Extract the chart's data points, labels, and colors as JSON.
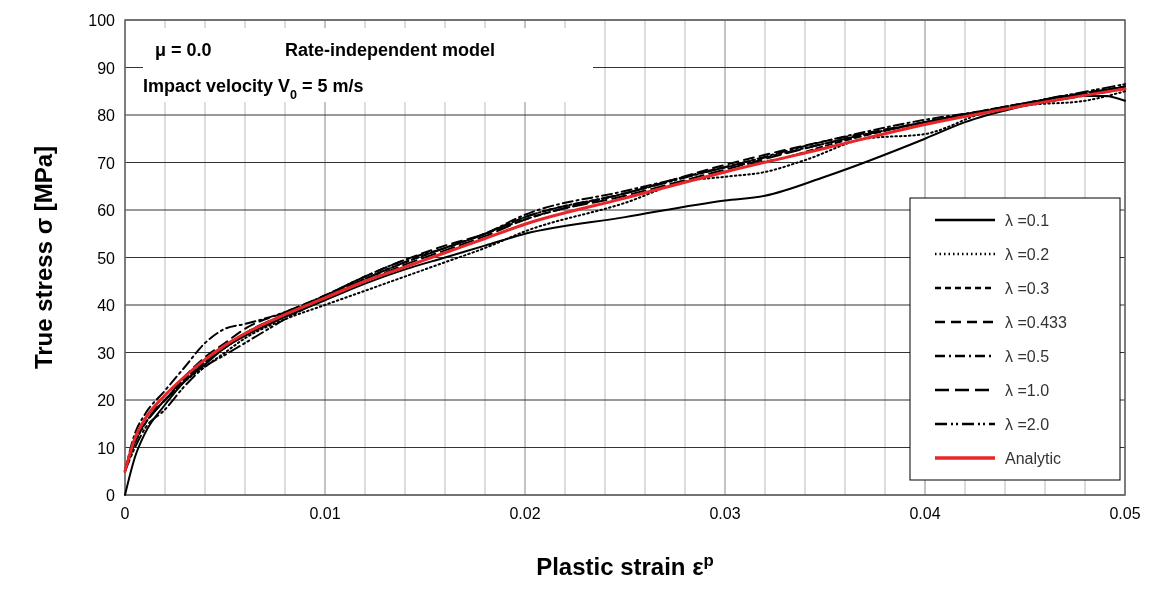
{
  "chart_data": {
    "type": "line",
    "xlabel": "Plastic strain ε$^{p}$",
    "ylabel": "True stress σ [MPa]",
    "annotations": [
      "μ = 0.0",
      "Rate-independent model",
      "Impact velocity V$_{0}$ = 5 m/s"
    ],
    "xlim": [
      0,
      0.05
    ],
    "ylim": [
      0,
      100
    ],
    "xticks": [
      0,
      {
        "value": 0.002,
        "label": null
      },
      {
        "value": 0.004,
        "label": null
      },
      {
        "value": 0.006,
        "label": null
      },
      {
        "value": 0.008,
        "label": null
      },
      0.01,
      {
        "value": 0.012,
        "label": null
      },
      {
        "value": 0.014,
        "label": null
      },
      {
        "value": 0.016,
        "label": null
      },
      {
        "value": 0.018,
        "label": null
      },
      0.02,
      {
        "value": 0.022,
        "label": null
      },
      {
        "value": 0.024,
        "label": null
      },
      {
        "value": 0.026,
        "label": null
      },
      {
        "value": 0.028,
        "label": null
      },
      0.03,
      {
        "value": 0.032,
        "label": null
      },
      {
        "value": 0.034,
        "label": null
      },
      {
        "value": 0.036,
        "label": null
      },
      {
        "value": 0.038,
        "label": null
      },
      0.04,
      {
        "value": 0.042,
        "label": null
      },
      {
        "value": 0.044,
        "label": null
      },
      {
        "value": 0.046,
        "label": null
      },
      {
        "value": 0.048,
        "label": null
      },
      0.05
    ],
    "yticks": [
      0,
      10,
      20,
      30,
      40,
      50,
      60,
      70,
      80,
      90,
      100
    ],
    "grid": true,
    "legend": "bottom right",
    "marker": "none",
    "series": [
      {
        "name": "λ =0.1",
        "color": "#000000",
        "line_style": "solid",
        "x": [
          0,
          0.0005,
          0.001,
          0.002,
          0.003,
          0.004,
          0.005,
          0.006,
          0.008,
          0.01,
          0.012,
          0.014,
          0.016,
          0.018,
          0.02,
          0.025,
          0.03,
          0.032,
          0.035,
          0.04,
          0.042,
          0.045,
          0.047,
          0.049,
          0.05
        ],
        "values": [
          0,
          8,
          13,
          19,
          24,
          27.5,
          31,
          33.5,
          37.5,
          41,
          44.5,
          47.5,
          50,
          52.5,
          55,
          58.5,
          62,
          63,
          67,
          75,
          78.5,
          82,
          84,
          84,
          83
        ]
      },
      {
        "name": "λ =0.2",
        "color": "#000000",
        "line_style": "dotted",
        "x": [
          0,
          0.0005,
          0.001,
          0.002,
          0.003,
          0.004,
          0.005,
          0.006,
          0.008,
          0.01,
          0.012,
          0.014,
          0.016,
          0.018,
          0.02,
          0.025,
          0.028,
          0.03,
          0.032,
          0.034,
          0.037,
          0.04,
          0.043,
          0.045,
          0.048,
          0.05
        ],
        "values": [
          5,
          11,
          15,
          20,
          24,
          27,
          30,
          33,
          37,
          40,
          43,
          46,
          49,
          52,
          55.5,
          61.5,
          66,
          67,
          68,
          70.5,
          75,
          76,
          80.5,
          82,
          83,
          85
        ]
      },
      {
        "name": "λ =0.3",
        "color": "#000000",
        "line_style": "dashed",
        "x": [
          0,
          0.0005,
          0.001,
          0.002,
          0.003,
          0.004,
          0.005,
          0.006,
          0.008,
          0.01,
          0.012,
          0.014,
          0.016,
          0.018,
          0.02,
          0.025,
          0.03,
          0.033,
          0.035,
          0.04,
          0.045,
          0.05
        ],
        "values": [
          5,
          11,
          15,
          20,
          24.5,
          28,
          31,
          34,
          38,
          42,
          45.5,
          49,
          52,
          55,
          58,
          63.5,
          69,
          71,
          73.5,
          78.5,
          82.5,
          86
        ]
      },
      {
        "name": "λ =0.433",
        "color": "#000000",
        "line_style": "dashed",
        "x": [
          0,
          0.0005,
          0.001,
          0.002,
          0.003,
          0.004,
          0.005,
          0.006,
          0.008,
          0.01,
          0.012,
          0.014,
          0.016,
          0.018,
          0.02,
          0.025,
          0.03,
          0.035,
          0.04,
          0.045,
          0.05
        ],
        "values": [
          5,
          12,
          16,
          20,
          25,
          29,
          32,
          35,
          38.5,
          42,
          46,
          49.5,
          52.5,
          55,
          58.5,
          63.5,
          69.5,
          74.5,
          78.5,
          82.5,
          86
        ]
      },
      {
        "name": "λ =0.5",
        "color": "#000000",
        "line_style": "dashed",
        "x": [
          0,
          0.0005,
          0.001,
          0.002,
          0.003,
          0.004,
          0.005,
          0.006,
          0.008,
          0.01,
          0.012,
          0.014,
          0.016,
          0.018,
          0.02,
          0.025,
          0.03,
          0.035,
          0.04,
          0.045,
          0.05
        ],
        "values": [
          5,
          13,
          17,
          22,
          27,
          32,
          35,
          36,
          38.5,
          42,
          46,
          49.5,
          52,
          55,
          59,
          64,
          69,
          74.5,
          79,
          82,
          86
        ]
      },
      {
        "name": "λ =1.0",
        "color": "#000000",
        "line_style": "dashed",
        "x": [
          0,
          0.0005,
          0.001,
          0.002,
          0.003,
          0.004,
          0.005,
          0.006,
          0.008,
          0.01,
          0.012,
          0.014,
          0.016,
          0.018,
          0.02,
          0.025,
          0.03,
          0.035,
          0.04,
          0.045,
          0.05
        ],
        "values": [
          5,
          12,
          15,
          20,
          24,
          28,
          31,
          34,
          38,
          41.5,
          45,
          48.5,
          51.5,
          54.5,
          58,
          63,
          68.5,
          74,
          78.5,
          82,
          85.5
        ]
      },
      {
        "name": "λ =2.0",
        "color": "#000000",
        "line_style": "dashed",
        "x": [
          0,
          0.0005,
          0.001,
          0.002,
          0.003,
          0.004,
          0.005,
          0.006,
          0.008,
          0.01,
          0.012,
          0.014,
          0.016,
          0.018,
          0.02,
          0.025,
          0.03,
          0.035,
          0.04,
          0.045,
          0.05
        ],
        "values": [
          5,
          10,
          14,
          18,
          23,
          27,
          29.5,
          32,
          37,
          41.5,
          45.5,
          49,
          52,
          55,
          58.5,
          63.5,
          69,
          74,
          78.5,
          82.5,
          86.5
        ]
      },
      {
        "name": "Analytic",
        "color": "#e8262a",
        "line_style": "solid",
        "x": [
          0,
          0.0005,
          0.001,
          0.002,
          0.003,
          0.004,
          0.005,
          0.006,
          0.008,
          0.01,
          0.012,
          0.014,
          0.016,
          0.018,
          0.02,
          0.025,
          0.03,
          0.035,
          0.04,
          0.045,
          0.05
        ],
        "values": [
          5,
          12,
          16,
          21,
          25,
          28.5,
          31.5,
          34,
          38,
          41.5,
          45,
          48,
          51,
          54,
          57,
          62.5,
          68,
          73,
          78,
          82,
          85.5
        ]
      }
    ]
  }
}
